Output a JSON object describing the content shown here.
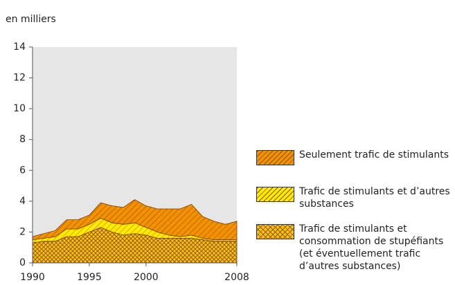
{
  "chart_data": {
    "type": "stacked_area",
    "y_axis_label": "en milliers",
    "x": [
      1990,
      1991,
      1992,
      1993,
      1994,
      1995,
      1996,
      1997,
      1998,
      1999,
      2000,
      2001,
      2002,
      2003,
      2004,
      2005,
      2006,
      2007,
      2008
    ],
    "xlim": [
      1990,
      2008
    ],
    "xticks": [
      1990,
      1995,
      2000,
      2008
    ],
    "ylim": [
      0,
      14
    ],
    "yticks": [
      0,
      2,
      4,
      6,
      8,
      10,
      12,
      14
    ],
    "series": [
      {
        "name": "Trafic de stimulants et consommation de stupéfiants (et éventuellement trafic d’autres substances)",
        "color": "#f7c21a",
        "values": [
          1.3,
          1.4,
          1.4,
          1.7,
          1.7,
          2.0,
          2.3,
          2.0,
          1.8,
          1.9,
          1.8,
          1.6,
          1.6,
          1.6,
          1.6,
          1.5,
          1.4,
          1.4,
          1.4
        ]
      },
      {
        "name": "Trafic de stimulants et d’autres substances",
        "color": "#ffea00",
        "values": [
          0.2,
          0.2,
          0.3,
          0.5,
          0.5,
          0.5,
          0.6,
          0.6,
          0.7,
          0.7,
          0.5,
          0.4,
          0.2,
          0.1,
          0.2,
          0.1,
          0.1,
          0.1,
          0.1
        ]
      },
      {
        "name": "Seulement trafic de stimulants",
        "color": "#f39200",
        "values": [
          0.2,
          0.3,
          0.4,
          0.6,
          0.6,
          0.6,
          1.0,
          1.1,
          1.1,
          1.5,
          1.4,
          1.5,
          1.7,
          1.8,
          2.0,
          1.4,
          1.2,
          1.0,
          1.2
        ]
      }
    ]
  }
}
